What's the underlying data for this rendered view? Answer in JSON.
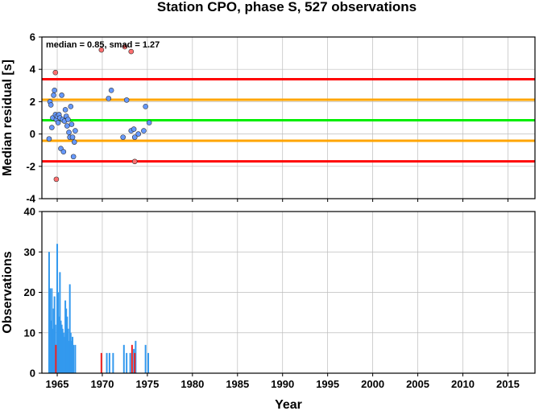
{
  "chart_data": [
    {
      "type": "scatter",
      "title": "Station CPO, phase S, 527 observations",
      "annotation": "median = 0.85, smad = 1.27",
      "xlabel": "",
      "ylabel": "Median residual [s]",
      "xlim": [
        1963.3,
        2018
      ],
      "ylim": [
        -4,
        6
      ],
      "xticks": [
        "1965",
        "1970",
        "1975",
        "1980",
        "1985",
        "1990",
        "1995",
        "2000",
        "2005",
        "2010",
        "2015"
      ],
      "yticks": [
        "-4",
        "-2",
        "0",
        "2",
        "4",
        "6"
      ],
      "reference_lines": [
        {
          "y": 3.39,
          "color": "#ff0000"
        },
        {
          "y": 2.12,
          "color": "#ffa500"
        },
        {
          "y": 0.85,
          "color": "#00ee00"
        },
        {
          "y": -0.42,
          "color": "#ffa500"
        },
        {
          "y": -1.69,
          "color": "#ff0000"
        }
      ],
      "grid": true,
      "series": [
        {
          "color": "#6699ff",
          "points": [
            [
              1964.1,
              -0.3
            ],
            [
              1964.2,
              2.0
            ],
            [
              1964.3,
              1.8
            ],
            [
              1964.4,
              0.4
            ],
            [
              1964.5,
              1.0
            ],
            [
              1964.6,
              2.4
            ],
            [
              1964.7,
              2.7
            ],
            [
              1964.8,
              1.2
            ],
            [
              1964.9,
              0.9
            ],
            [
              1965.0,
              1.1
            ],
            [
              1965.1,
              0.7
            ],
            [
              1965.2,
              1.2
            ],
            [
              1965.3,
              1.0
            ],
            [
              1965.4,
              -0.9
            ],
            [
              1965.5,
              2.4
            ],
            [
              1965.6,
              0.9
            ],
            [
              1965.7,
              -1.1
            ],
            [
              1965.8,
              0.8
            ],
            [
              1965.9,
              1.5
            ],
            [
              1966.0,
              1.1
            ],
            [
              1966.1,
              0.5
            ],
            [
              1966.2,
              0.9
            ],
            [
              1966.3,
              0.1
            ],
            [
              1966.4,
              -0.2
            ],
            [
              1966.5,
              1.7
            ],
            [
              1966.6,
              0.6
            ],
            [
              1966.7,
              -0.2
            ],
            [
              1966.8,
              -1.4
            ],
            [
              1966.9,
              -0.5
            ],
            [
              1967.0,
              0.2
            ],
            [
              1970.7,
              2.2
            ],
            [
              1971.0,
              2.7
            ],
            [
              1972.3,
              -0.2
            ],
            [
              1972.7,
              2.1
            ],
            [
              1973.2,
              0.2
            ],
            [
              1973.5,
              0.3
            ],
            [
              1973.6,
              -0.2
            ],
            [
              1974.0,
              0.0
            ],
            [
              1974.6,
              0.2
            ],
            [
              1974.8,
              1.7
            ],
            [
              1975.2,
              0.7
            ]
          ]
        },
        {
          "color": "#ff7070",
          "points": [
            [
              1964.8,
              3.8
            ],
            [
              1964.9,
              -2.8
            ],
            [
              1969.9,
              5.2
            ],
            [
              1972.5,
              5.4
            ],
            [
              1973.2,
              5.1
            ],
            [
              1973.6,
              -1.7
            ]
          ]
        }
      ]
    },
    {
      "type": "bar",
      "xlabel": "Year",
      "ylabel": "Observations",
      "xlim": [
        1963.3,
        2018
      ],
      "ylim": [
        0,
        40
      ],
      "xticks": [
        "1965",
        "1970",
        "1975",
        "1980",
        "1985",
        "1990",
        "1995",
        "2000",
        "2005",
        "2010",
        "2015"
      ],
      "yticks": [
        "0",
        "10",
        "20",
        "30",
        "40"
      ],
      "grid": true,
      "series": [
        {
          "color": "#3399ee",
          "bars": [
            [
              1964.1,
              30
            ],
            [
              1964.2,
              21
            ],
            [
              1964.3,
              13
            ],
            [
              1964.4,
              21
            ],
            [
              1964.5,
              11
            ],
            [
              1964.6,
              16
            ],
            [
              1964.7,
              19
            ],
            [
              1964.8,
              12
            ],
            [
              1965.0,
              32
            ],
            [
              1965.1,
              20
            ],
            [
              1965.2,
              14
            ],
            [
              1965.3,
              25
            ],
            [
              1965.4,
              13
            ],
            [
              1965.5,
              12
            ],
            [
              1965.6,
              11
            ],
            [
              1965.7,
              10
            ],
            [
              1965.8,
              9
            ],
            [
              1965.9,
              18
            ],
            [
              1966.0,
              16
            ],
            [
              1966.1,
              14
            ],
            [
              1966.2,
              11
            ],
            [
              1966.3,
              8
            ],
            [
              1966.4,
              22
            ],
            [
              1966.5,
              10
            ],
            [
              1966.6,
              8
            ],
            [
              1966.7,
              9
            ],
            [
              1966.8,
              7
            ],
            [
              1967.0,
              7
            ],
            [
              1970.5,
              5
            ],
            [
              1970.8,
              5
            ],
            [
              1971.2,
              5
            ],
            [
              1972.4,
              7
            ],
            [
              1972.7,
              5
            ],
            [
              1973.1,
              5
            ],
            [
              1973.5,
              6
            ],
            [
              1973.7,
              8
            ],
            [
              1974.8,
              7
            ],
            [
              1975.1,
              5
            ]
          ]
        },
        {
          "color": "#ee2222",
          "bars": [
            [
              1964.85,
              7
            ],
            [
              1969.9,
              5
            ],
            [
              1973.3,
              7
            ],
            [
              1973.6,
              5
            ]
          ]
        }
      ]
    }
  ]
}
